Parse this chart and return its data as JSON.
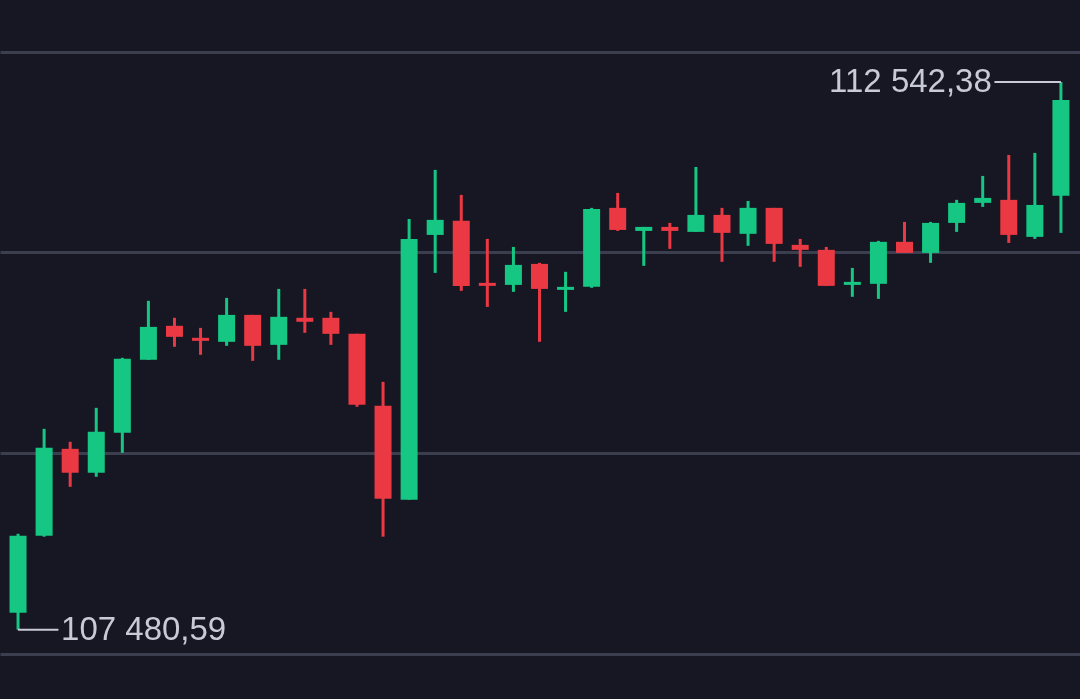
{
  "chart_data": {
    "type": "candlestick",
    "categories": [
      null,
      null,
      null,
      null,
      null,
      null,
      null,
      null,
      null,
      null,
      null,
      null,
      null,
      null,
      null,
      null,
      null,
      null,
      null,
      null,
      null,
      null,
      null,
      null,
      null,
      null,
      null,
      null,
      null,
      null,
      null,
      null,
      null,
      null,
      null,
      null,
      null,
      null,
      null,
      null,
      null
    ],
    "ohlc": [
      [
        107638,
        108367,
        107480.59,
        108349
      ],
      [
        108349,
        109337,
        108340,
        109162
      ],
      [
        109152,
        109217,
        108801,
        108931
      ],
      [
        108931,
        109531,
        108894,
        109310
      ],
      [
        109300,
        109993,
        109115,
        109984
      ],
      [
        109975,
        110520,
        109975,
        110279
      ],
      [
        110289,
        110363,
        110095,
        110187
      ],
      [
        110178,
        110270,
        110021,
        110150
      ],
      [
        110141,
        110547,
        110104,
        110390
      ],
      [
        110390,
        110390,
        109965,
        110104
      ],
      [
        110113,
        110630,
        109975,
        110372
      ],
      [
        110363,
        110630,
        110224,
        110326
      ],
      [
        110363,
        110418,
        110113,
        110215
      ],
      [
        110215,
        110215,
        109541,
        109559
      ],
      [
        109550,
        109771,
        108340,
        108691
      ],
      [
        108681,
        111277,
        108681,
        111092
      ],
      [
        111129,
        111730,
        110778,
        111268
      ],
      [
        111259,
        111499,
        110612,
        110658
      ],
      [
        110686,
        111092,
        110464,
        110658
      ],
      [
        110667,
        111018,
        110603,
        110852
      ],
      [
        110861,
        110871,
        110141,
        110630
      ],
      [
        110621,
        110788,
        110418,
        110649
      ],
      [
        110649,
        111379,
        110640,
        111369
      ],
      [
        111379,
        111517,
        111166,
        111175
      ],
      [
        111166,
        111203,
        110843,
        111203
      ],
      [
        111203,
        111240,
        111000,
        111166
      ],
      [
        111157,
        111757,
        111157,
        111314
      ],
      [
        111314,
        111379,
        110880,
        111148
      ],
      [
        111139,
        111443,
        111028,
        111379
      ],
      [
        111379,
        111379,
        110880,
        111046
      ],
      [
        111037,
        111092,
        110834,
        110991
      ],
      [
        110991,
        111018,
        110658,
        110658
      ],
      [
        110667,
        110824,
        110557,
        110695
      ],
      [
        110677,
        111074,
        110538,
        111065
      ],
      [
        111065,
        111249,
        110963,
        110963
      ],
      [
        110963,
        111249,
        110871,
        111240
      ],
      [
        111240,
        111453,
        111157,
        111425
      ],
      [
        111425,
        111674,
        111388,
        111471
      ],
      [
        111453,
        111868,
        111055,
        111129
      ],
      [
        111111,
        111887,
        111092,
        111406
      ],
      [
        111490,
        112542.38,
        111148,
        112376
      ]
    ],
    "colors": [
      "#16c784",
      "#16c784",
      "#ea3943",
      "#16c784",
      "#16c784",
      "#16c784",
      "#ea3943",
      "#ea3943",
      "#16c784",
      "#ea3943",
      "#16c784",
      "#ea3943",
      "#ea3943",
      "#ea3943",
      "#ea3943",
      "#16c784",
      "#16c784",
      "#ea3943",
      "#ea3943",
      "#16c784",
      "#ea3943",
      "#16c784",
      "#16c784",
      "#ea3943",
      "#16c784",
      "#ea3943",
      "#16c784",
      "#ea3943",
      "#16c784",
      "#ea3943",
      "#ea3943",
      "#ea3943",
      "#16c784",
      "#16c784",
      "#ea3943",
      "#16c784",
      "#16c784",
      "#16c784",
      "#ea3943",
      "#16c784",
      "#16c784"
    ],
    "ylim": [
      106840,
      113300
    ],
    "yticks": [
      {
        "value": 107260,
        "label": null
      },
      {
        "value": 109115,
        "label": null
      },
      {
        "value": 110972,
        "label": null
      },
      {
        "value": 112819,
        "label": null
      }
    ],
    "grid": "y",
    "annotations": [
      "112 542,38",
      "107 480,59"
    ]
  }
}
